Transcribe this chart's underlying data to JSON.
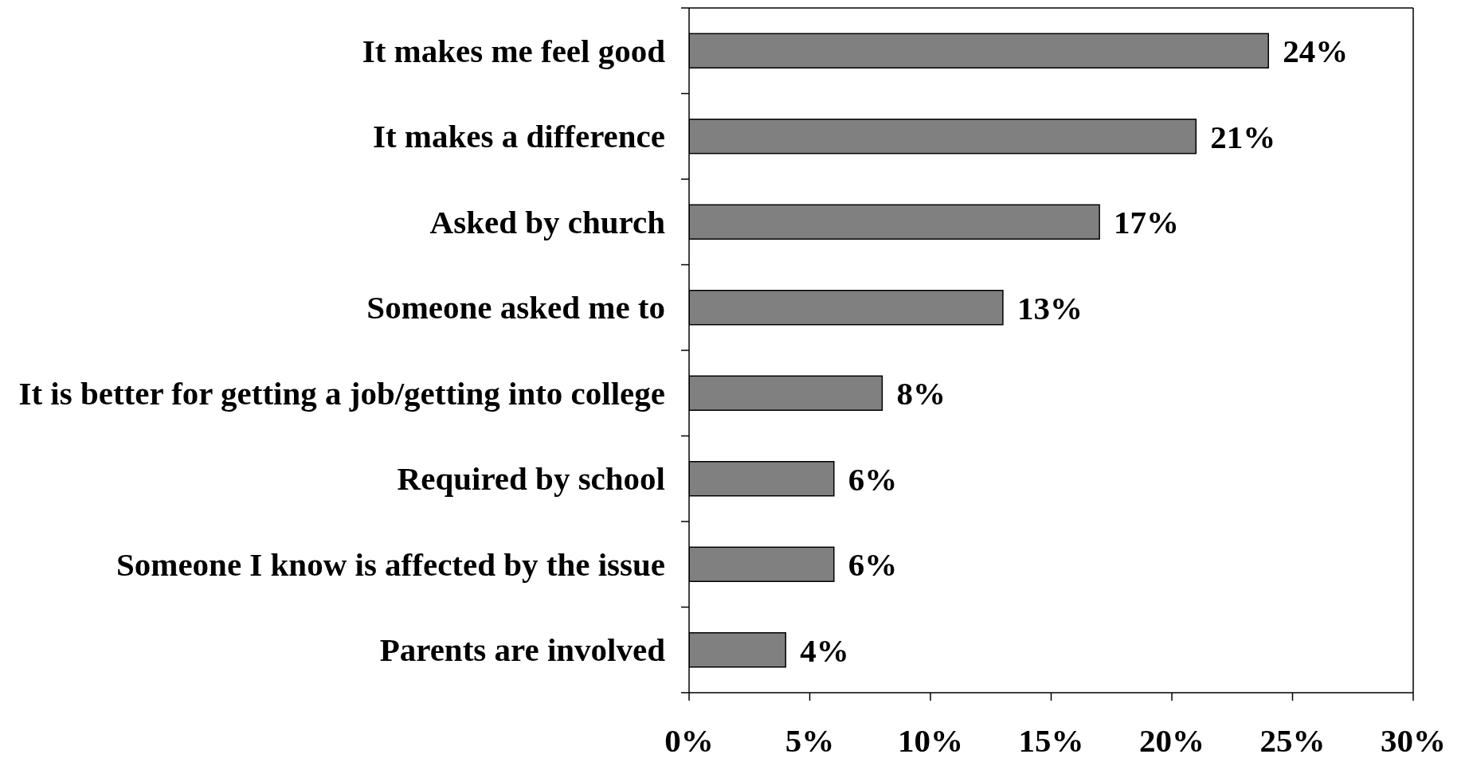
{
  "chart_data": {
    "type": "bar",
    "orientation": "horizontal",
    "categories": [
      "It makes me feel good",
      "It makes a difference",
      "Asked by church",
      "Someone asked me to",
      "It is better for getting a job/getting into college",
      "Required by school",
      "Someone I know is affected by the issue",
      "Parents are involved"
    ],
    "values": [
      24,
      21,
      17,
      13,
      8,
      6,
      6,
      4
    ],
    "value_labels": [
      "24%",
      "21%",
      "17%",
      "13%",
      "8%",
      "6%",
      "6%",
      "4%"
    ],
    "color": "#808080",
    "xlim": [
      0,
      30
    ],
    "xticks": [
      {
        "value": 0,
        "label": "0%"
      },
      {
        "value": 5,
        "label": "5%"
      },
      {
        "value": 10,
        "label": "10%"
      },
      {
        "value": 15,
        "label": "15%"
      },
      {
        "value": 20,
        "label": "20%"
      },
      {
        "value": 25,
        "label": "25%"
      },
      {
        "value": 30,
        "label": "30%"
      }
    ]
  }
}
